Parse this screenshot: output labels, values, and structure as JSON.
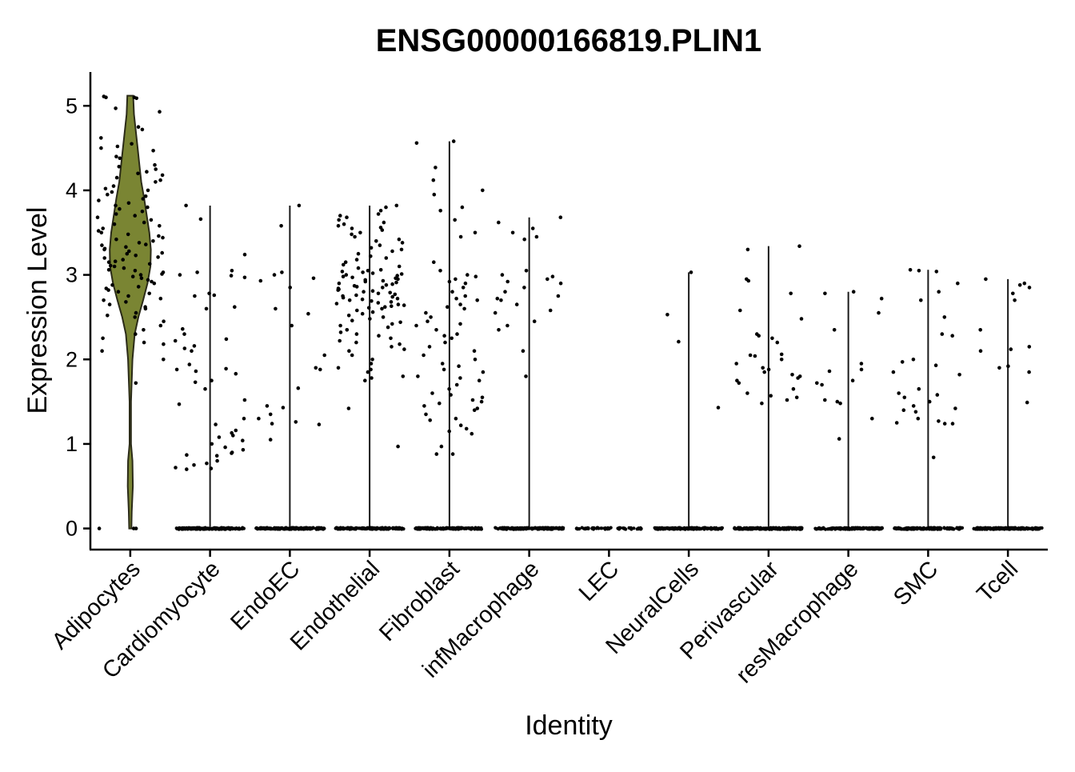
{
  "chart_data": {
    "type": "violin",
    "title": "ENSG00000166819.PLIN1",
    "xlabel": "Identity",
    "ylabel": "Expression Level",
    "ylim": [
      -0.25,
      5.4
    ],
    "yticks": [
      0,
      1,
      2,
      3,
      4,
      5
    ],
    "grid": false,
    "legend": "none",
    "colors": {
      "violin_fill": "#7a8533",
      "violin_stroke": "#2b2b18",
      "point": "#000000"
    },
    "categories": [
      "Adipocytes",
      "Cardiomyocyte",
      "EndoEC",
      "Endothelial",
      "Fibroblast",
      "infMacrophage",
      "LEC",
      "NeuralCells",
      "Perivascular",
      "resMacrophage",
      "SMC",
      "Tcell"
    ],
    "violins": [
      {
        "category": "Adipocytes",
        "max": 5.12,
        "zero_cells": "few",
        "filled": true,
        "density": [
          [
            0.0,
            0.03
          ],
          [
            0.2,
            0.04
          ],
          [
            0.5,
            0.07
          ],
          [
            0.8,
            0.06
          ],
          [
            1.0,
            0.02
          ],
          [
            1.5,
            0.02
          ],
          [
            2.0,
            0.06
          ],
          [
            2.3,
            0.12
          ],
          [
            2.5,
            0.22
          ],
          [
            2.7,
            0.35
          ],
          [
            2.9,
            0.47
          ],
          [
            3.1,
            0.55
          ],
          [
            3.3,
            0.56
          ],
          [
            3.5,
            0.52
          ],
          [
            3.7,
            0.45
          ],
          [
            3.9,
            0.38
          ],
          [
            4.1,
            0.3
          ],
          [
            4.3,
            0.25
          ],
          [
            4.5,
            0.2
          ],
          [
            4.7,
            0.15
          ],
          [
            4.9,
            0.1
          ],
          [
            5.12,
            0.08
          ]
        ]
      },
      {
        "category": "Cardiomyocyte",
        "max": 3.82,
        "zero_cells": "many",
        "filled": false
      },
      {
        "category": "EndoEC",
        "max": 3.82,
        "zero_cells": "many",
        "filled": false
      },
      {
        "category": "Endothelial",
        "max": 3.82,
        "zero_cells": "many",
        "filled": false
      },
      {
        "category": "Fibroblast",
        "max": 4.58,
        "zero_cells": "many",
        "filled": false
      },
      {
        "category": "infMacrophage",
        "max": 3.68,
        "zero_cells": "many",
        "filled": false
      },
      {
        "category": "LEC",
        "max": 0,
        "zero_cells": "some",
        "filled": false
      },
      {
        "category": "NeuralCells",
        "max": 3.03,
        "zero_cells": "many",
        "filled": false
      },
      {
        "category": "Perivascular",
        "max": 3.34,
        "zero_cells": "many",
        "filled": false
      },
      {
        "category": "resMacrophage",
        "max": 2.8,
        "zero_cells": "many",
        "filled": false
      },
      {
        "category": "SMC",
        "max": 3.06,
        "zero_cells": "many",
        "filled": false
      },
      {
        "category": "Tcell",
        "max": 2.95,
        "zero_cells": "many",
        "filled": false
      }
    ],
    "points": [
      {
        "category": "Adipocytes",
        "values": [
          5.1,
          5.09,
          5.1,
          5.11,
          4.97,
          4.93,
          4.75,
          4.72,
          4.62,
          4.55,
          4.52,
          4.5,
          4.47,
          4.4,
          4.38,
          4.3,
          4.28,
          4.25,
          4.22,
          4.2,
          4.18,
          4.15,
          4.12,
          4.1,
          4.05,
          4.02,
          4.0,
          3.98,
          3.95,
          3.93,
          3.9,
          3.88,
          3.85,
          3.82,
          3.8,
          3.78,
          3.75,
          3.72,
          3.7,
          3.68,
          3.65,
          3.62,
          3.6,
          3.58,
          3.55,
          3.52,
          3.5,
          3.48,
          3.46,
          3.44,
          3.42,
          3.4,
          3.38,
          3.36,
          3.35,
          3.33,
          3.31,
          3.3,
          3.28,
          3.26,
          3.25,
          3.23,
          3.21,
          3.2,
          3.18,
          3.16,
          3.15,
          3.13,
          3.11,
          3.1,
          3.08,
          3.06,
          3.05,
          3.03,
          3.01,
          3.0,
          2.98,
          2.96,
          2.94,
          2.92,
          2.9,
          2.88,
          2.86,
          2.84,
          2.82,
          2.8,
          2.78,
          2.75,
          2.72,
          2.7,
          2.68,
          2.65,
          2.62,
          2.6,
          2.55,
          2.52,
          2.5,
          2.45,
          2.4,
          2.35,
          2.3,
          2.25,
          2.2,
          2.18,
          2.1,
          2.0,
          1.72,
          0.0,
          0.0,
          0.0
        ]
      },
      {
        "category": "Cardiomyocyte",
        "values": [
          3.82,
          3.66,
          3.24,
          3.05,
          3.03,
          3.0,
          2.99,
          2.97,
          2.78,
          2.76,
          2.75,
          2.62,
          2.6,
          2.36,
          2.3,
          2.24,
          2.22,
          2.16,
          2.13,
          2.1,
          1.94,
          1.89,
          1.88,
          1.86,
          1.83,
          1.75,
          1.73,
          1.65,
          1.52,
          1.47,
          1.3,
          1.23,
          1.16,
          1.13,
          1.1,
          1.08,
          1.04,
          1.0,
          0.96,
          0.93,
          0.9,
          0.89,
          0.87,
          0.86,
          0.8,
          0.77,
          0.75,
          0.72,
          0.71,
          0.7,
          0.0
        ]
      },
      {
        "category": "EndoEC",
        "values": [
          3.82,
          3.58,
          3.03,
          3.0,
          2.96,
          2.93,
          2.85,
          2.6,
          2.54,
          2.4,
          2.05,
          1.9,
          1.88,
          1.66,
          1.45,
          1.43,
          1.35,
          1.3,
          1.26,
          1.24,
          1.23,
          1.05,
          0.0
        ]
      },
      {
        "category": "Endothelial",
        "values": [
          3.82,
          3.8,
          3.76,
          3.72,
          3.7,
          3.68,
          3.65,
          3.62,
          3.6,
          3.58,
          3.56,
          3.55,
          3.53,
          3.5,
          3.48,
          3.45,
          3.42,
          3.4,
          3.38,
          3.35,
          3.32,
          3.3,
          3.28,
          3.25,
          3.22,
          3.2,
          3.18,
          3.15,
          3.12,
          3.1,
          3.08,
          3.06,
          3.05,
          3.04,
          3.03,
          3.02,
          3.01,
          3.0,
          2.99,
          2.98,
          2.97,
          2.96,
          2.95,
          2.94,
          2.93,
          2.92,
          2.91,
          2.9,
          2.89,
          2.88,
          2.87,
          2.86,
          2.85,
          2.84,
          2.83,
          2.82,
          2.81,
          2.8,
          2.79,
          2.78,
          2.77,
          2.76,
          2.75,
          2.74,
          2.73,
          2.72,
          2.71,
          2.7,
          2.69,
          2.68,
          2.67,
          2.66,
          2.65,
          2.64,
          2.63,
          2.62,
          2.61,
          2.6,
          2.58,
          2.56,
          2.54,
          2.52,
          2.5,
          2.48,
          2.46,
          2.44,
          2.42,
          2.4,
          2.38,
          2.35,
          2.32,
          2.3,
          2.28,
          2.25,
          2.22,
          2.2,
          2.18,
          2.15,
          2.12,
          2.1,
          2.05,
          2.0,
          1.95,
          1.9,
          1.88,
          1.85,
          1.8,
          1.78,
          1.75,
          1.42,
          0.97,
          0.0
        ]
      },
      {
        "category": "Fibroblast",
        "values": [
          4.58,
          4.56,
          4.27,
          4.12,
          4.0,
          3.95,
          3.8,
          3.76,
          3.65,
          3.5,
          3.45,
          3.15,
          3.05,
          3.0,
          2.98,
          2.95,
          2.92,
          2.9,
          2.85,
          2.8,
          2.75,
          2.72,
          2.7,
          2.65,
          2.62,
          2.6,
          2.55,
          2.5,
          2.45,
          2.42,
          2.4,
          2.35,
          2.3,
          2.28,
          2.25,
          2.2,
          2.15,
          2.1,
          2.05,
          2.0,
          1.95,
          1.92,
          1.88,
          1.85,
          1.8,
          1.78,
          1.75,
          1.7,
          1.65,
          1.6,
          1.58,
          1.55,
          1.52,
          1.5,
          1.48,
          1.45,
          1.42,
          1.4,
          1.35,
          1.3,
          1.28,
          1.22,
          1.18,
          1.15,
          1.12,
          0.97,
          0.88,
          0.88,
          0.0
        ]
      },
      {
        "category": "infMacrophage",
        "values": [
          3.68,
          3.62,
          3.55,
          3.5,
          3.45,
          3.42,
          3.05,
          3.0,
          2.98,
          2.95,
          2.92,
          2.9,
          2.85,
          2.8,
          2.75,
          2.72,
          2.7,
          2.65,
          2.58,
          2.55,
          2.45,
          2.4,
          2.35,
          2.1,
          1.8,
          0.0
        ]
      },
      {
        "category": "LEC",
        "values": [
          0.0
        ]
      },
      {
        "category": "NeuralCells",
        "values": [
          3.03,
          2.53,
          2.21,
          1.43,
          0.0
        ]
      },
      {
        "category": "Perivascular",
        "values": [
          3.34,
          3.3,
          2.95,
          2.93,
          2.78,
          2.58,
          2.48,
          2.3,
          2.28,
          2.25,
          2.2,
          2.06,
          2.05,
          2.04,
          2.0,
          1.95,
          1.9,
          1.88,
          1.85,
          1.82,
          1.8,
          1.78,
          1.75,
          1.72,
          1.65,
          1.6,
          1.57,
          1.55,
          1.52,
          1.48,
          0.0
        ]
      },
      {
        "category": "resMacrophage",
        "values": [
          2.8,
          2.78,
          2.72,
          2.55,
          2.35,
          1.95,
          1.88,
          1.86,
          1.75,
          1.72,
          1.7,
          1.52,
          1.5,
          1.48,
          1.3,
          1.06,
          0.0
        ]
      },
      {
        "category": "SMC",
        "values": [
          3.06,
          3.05,
          3.04,
          2.9,
          2.8,
          2.7,
          2.5,
          2.3,
          2.28,
          2.0,
          1.97,
          1.93,
          1.85,
          1.82,
          1.65,
          1.6,
          1.58,
          1.55,
          1.5,
          1.45,
          1.42,
          1.4,
          1.38,
          1.3,
          1.27,
          1.25,
          1.24,
          1.24,
          0.84,
          0.0
        ]
      },
      {
        "category": "Tcell",
        "values": [
          2.95,
          2.9,
          2.88,
          2.85,
          2.78,
          2.7,
          2.35,
          2.15,
          2.12,
          2.1,
          1.92,
          1.9,
          1.85,
          1.49,
          0.0
        ]
      }
    ]
  }
}
